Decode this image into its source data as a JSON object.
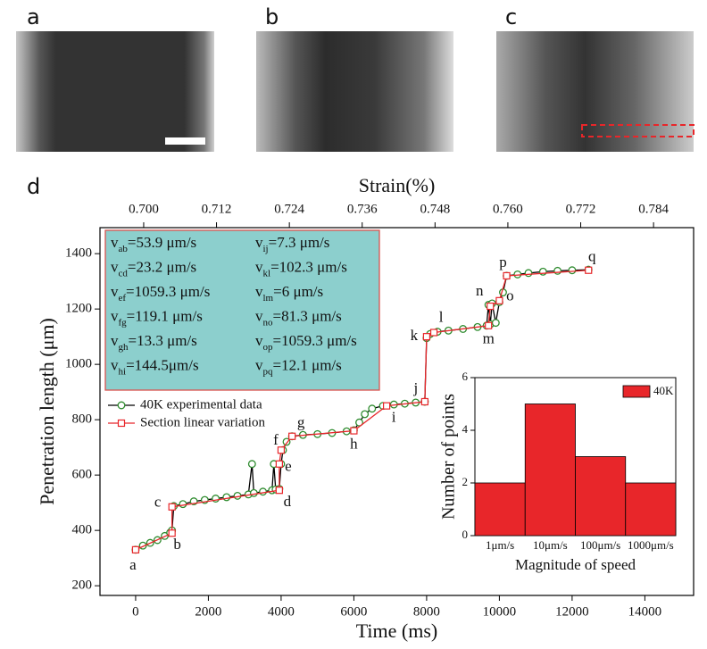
{
  "panel_labels": [
    "a",
    "b",
    "c",
    "d"
  ],
  "velocity_symbol": "v",
  "velocities": [
    {
      "sub": "ab",
      "rest": "=53.9 μm/s"
    },
    {
      "sub": "cd",
      "rest": "=23.2 μm/s"
    },
    {
      "sub": "ef",
      "rest": "=1059.3 μm/s"
    },
    {
      "sub": "fg",
      "rest": "=119.1 μm/s"
    },
    {
      "sub": "gh",
      "rest": "=13.3 μm/s"
    },
    {
      "sub": "hi",
      "rest": "=144.5μm/s"
    },
    {
      "sub": "ij",
      "rest": "=7.3 μm/s"
    },
    {
      "sub": "kl",
      "rest": "=102.3 μm/s"
    },
    {
      "sub": "lm",
      "rest": "=6 μm/s"
    },
    {
      "sub": "no",
      "rest": "=81.3 μm/s"
    },
    {
      "sub": "op",
      "rest": "=1059.3 μm/s"
    },
    {
      "sub": "pq",
      "rest": "=12.1 μm/s"
    }
  ],
  "chart_data": [
    {
      "type": "line",
      "xlabel": "Time (ms)",
      "ylabel": "Penetration length (μm)",
      "x2label": "Strain(%)",
      "xlim": [
        -980,
        15340
      ],
      "xticks": [
        0,
        2000,
        4000,
        6000,
        8000,
        10000,
        12000,
        14000
      ],
      "ylim": [
        165,
        1494
      ],
      "yticks": [
        200,
        400,
        600,
        800,
        1000,
        1200,
        1400
      ],
      "x2lim": [
        0.6928,
        0.7906
      ],
      "x2ticks": [
        {
          "value": 0.7,
          "label": "0.700"
        },
        {
          "value": 0.712,
          "label": "0.712"
        },
        {
          "value": 0.724,
          "label": "0.724"
        },
        {
          "value": 0.736,
          "label": "0.736"
        },
        {
          "value": 0.748,
          "label": "0.748"
        },
        {
          "value": 0.76,
          "label": "0.760"
        },
        {
          "value": 0.772,
          "label": "0.772"
        },
        {
          "value": 0.784,
          "label": "0.784"
        }
      ],
      "legend": "lower left",
      "series": [
        {
          "name": "40K experimental data",
          "color": "#2e8b2e",
          "line_color": "#000000",
          "marker": "circle",
          "x": [
            0,
            200,
            400,
            600,
            800,
            950,
            1000,
            1050,
            1300,
            1600,
            1900,
            2200,
            2500,
            2800,
            3100,
            3200,
            3250,
            3500,
            3750,
            3800,
            3850,
            3950,
            4000,
            4050,
            4150,
            4300,
            4600,
            5000,
            5400,
            5800,
            6000,
            6150,
            6300,
            6500,
            6800,
            7100,
            7400,
            7700,
            7950,
            8000,
            8100,
            8300,
            8600,
            9000,
            9400,
            9650,
            9700,
            9750,
            9800,
            9900,
            10000,
            10100,
            10200,
            10500,
            10800,
            11200,
            11600,
            12000,
            12450
          ],
          "values": [
            330,
            345,
            355,
            365,
            380,
            392,
            400,
            488,
            495,
            505,
            510,
            515,
            520,
            525,
            530,
            640,
            535,
            540,
            545,
            640,
            548,
            550,
            640,
            690,
            720,
            740,
            745,
            748,
            752,
            758,
            762,
            790,
            820,
            840,
            850,
            855,
            858,
            862,
            865,
            1095,
            1110,
            1118,
            1122,
            1128,
            1135,
            1140,
            1215,
            1145,
            1220,
            1150,
            1225,
            1260,
            1320,
            1325,
            1330,
            1335,
            1338,
            1340,
            1342
          ]
        },
        {
          "name": "Section linear variation",
          "color": "#e8262a",
          "line_color": "#e8262a",
          "marker": "square",
          "labels": [
            "a",
            "b",
            "c",
            "d",
            "e",
            "f",
            "g",
            "h",
            "i",
            "j",
            "k",
            "l",
            "m",
            "n",
            "o",
            "p",
            "q"
          ],
          "x": [
            0,
            1000,
            1000,
            3950,
            3950,
            4000,
            4300,
            6000,
            6900,
            7950,
            8000,
            8200,
            9700,
            9750,
            10000,
            10200,
            12450
          ],
          "values": [
            330,
            390,
            485,
            545,
            640,
            690,
            740,
            760,
            850,
            865,
            1100,
            1115,
            1140,
            1210,
            1230,
            1320,
            1340
          ]
        }
      ]
    },
    {
      "type": "bar",
      "xlabel": "Magnitude of speed",
      "ylabel": "Number of points",
      "categories": [
        "1μm/s",
        "10μm/s",
        "100μm/s",
        "1000μm/s"
      ],
      "series": [
        {
          "name": "40K",
          "color": "#e8262a",
          "values": [
            2,
            5,
            3,
            2
          ]
        }
      ],
      "ylim": [
        0,
        6
      ],
      "yticks": [
        0,
        2,
        4,
        6
      ],
      "legend": "upper right"
    }
  ]
}
